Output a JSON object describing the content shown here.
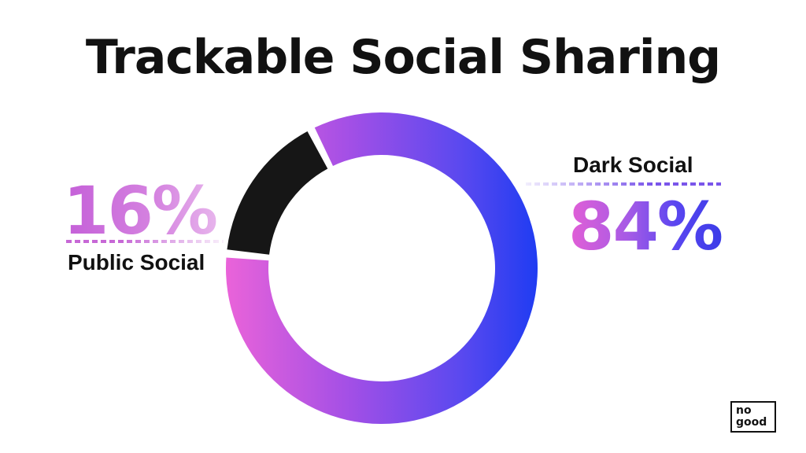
{
  "chart_data": {
    "type": "pie",
    "title": "Trackable Social Sharing",
    "categories": [
      "Public Social",
      "Dark Social"
    ],
    "values": [
      16,
      84
    ],
    "value_labels": [
      "16%",
      "84%"
    ],
    "colors": {
      "Public Social": "#161616",
      "Dark Social_gradient": [
        "#ea63d9",
        "#a24fe6",
        "#5b49ef",
        "#1f3cf2"
      ]
    },
    "style": "donut"
  },
  "logo": {
    "line1": "no",
    "line2": "good"
  }
}
